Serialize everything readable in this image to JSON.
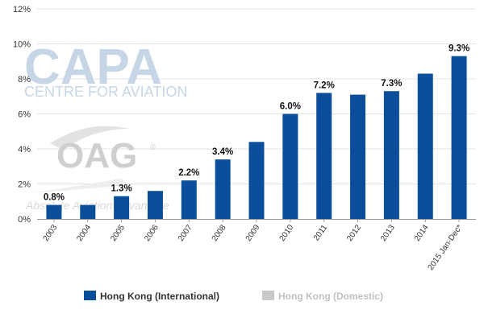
{
  "watermarks": {
    "capa": "CAPA",
    "capa_sub": "CENTRE FOR AVIATION",
    "oag": "OAG",
    "oag_reg": "®",
    "oag_sub": "Absolute Aviation Advantage"
  },
  "colors": {
    "international": "#0b4f9c",
    "domestic": "#c8c8c8",
    "gridline": "#e3e3e3",
    "axis": "#999999"
  },
  "chart_data": {
    "type": "bar",
    "title": "",
    "xlabel": "",
    "ylabel": "",
    "ylim": [
      0,
      12
    ],
    "yticks": [
      0,
      2,
      4,
      6,
      8,
      10,
      12
    ],
    "ytick_labels": [
      "0%",
      "2%",
      "4%",
      "6%",
      "8%",
      "10%",
      "12%"
    ],
    "grid": true,
    "legend_position": "bottom",
    "categories": [
      "2003",
      "2004",
      "2005",
      "2006",
      "2007",
      "2008",
      "2009",
      "2010",
      "2011",
      "2012",
      "2013",
      "2014",
      "2015 Jan-Dec*"
    ],
    "series": [
      {
        "name": "Hong Kong (International)",
        "values": [
          0.8,
          0.8,
          1.3,
          1.6,
          2.2,
          3.4,
          4.4,
          6.0,
          7.2,
          7.1,
          7.3,
          8.3,
          9.3
        ],
        "data_labels": [
          "0.8%",
          "",
          "1.3%",
          "",
          "2.2%",
          "3.4%",
          "",
          "6.0%",
          "7.2%",
          "",
          "7.3%",
          "",
          "9.3%"
        ]
      },
      {
        "name": "Hong Kong (Domestic)",
        "values": [
          0,
          0,
          0,
          0,
          0,
          0,
          0,
          0,
          0,
          0,
          0,
          0,
          0
        ],
        "data_labels": []
      }
    ]
  }
}
